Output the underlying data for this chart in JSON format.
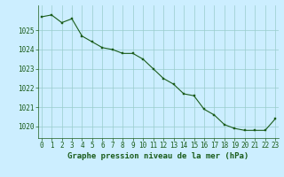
{
  "x": [
    0,
    1,
    2,
    3,
    4,
    5,
    6,
    7,
    8,
    9,
    10,
    11,
    12,
    13,
    14,
    15,
    16,
    17,
    18,
    19,
    20,
    21,
    22,
    23
  ],
  "y": [
    1025.7,
    1025.8,
    1025.4,
    1025.6,
    1024.7,
    1024.4,
    1024.1,
    1024.0,
    1023.8,
    1023.8,
    1023.5,
    1023.0,
    1022.5,
    1022.2,
    1021.7,
    1021.6,
    1020.9,
    1020.6,
    1020.1,
    1019.9,
    1019.8,
    1019.8,
    1019.8,
    1020.4
  ],
  "line_color": "#1a5c1a",
  "marker_color": "#1a5c1a",
  "bg_color": "#cceeff",
  "grid_color": "#99cccc",
  "text_color": "#1a5c1a",
  "xlabel": "Graphe pression niveau de la mer (hPa)",
  "yticks": [
    1020,
    1021,
    1022,
    1023,
    1024,
    1025
  ],
  "xticks": [
    0,
    1,
    2,
    3,
    4,
    5,
    6,
    7,
    8,
    9,
    10,
    11,
    12,
    13,
    14,
    15,
    16,
    17,
    18,
    19,
    20,
    21,
    22,
    23
  ],
  "ylim": [
    1019.4,
    1026.3
  ],
  "xlim": [
    -0.3,
    23.3
  ],
  "xlabel_fontsize": 6.5,
  "tick_fontsize": 5.5,
  "marker_size": 2.0,
  "line_width": 0.8
}
